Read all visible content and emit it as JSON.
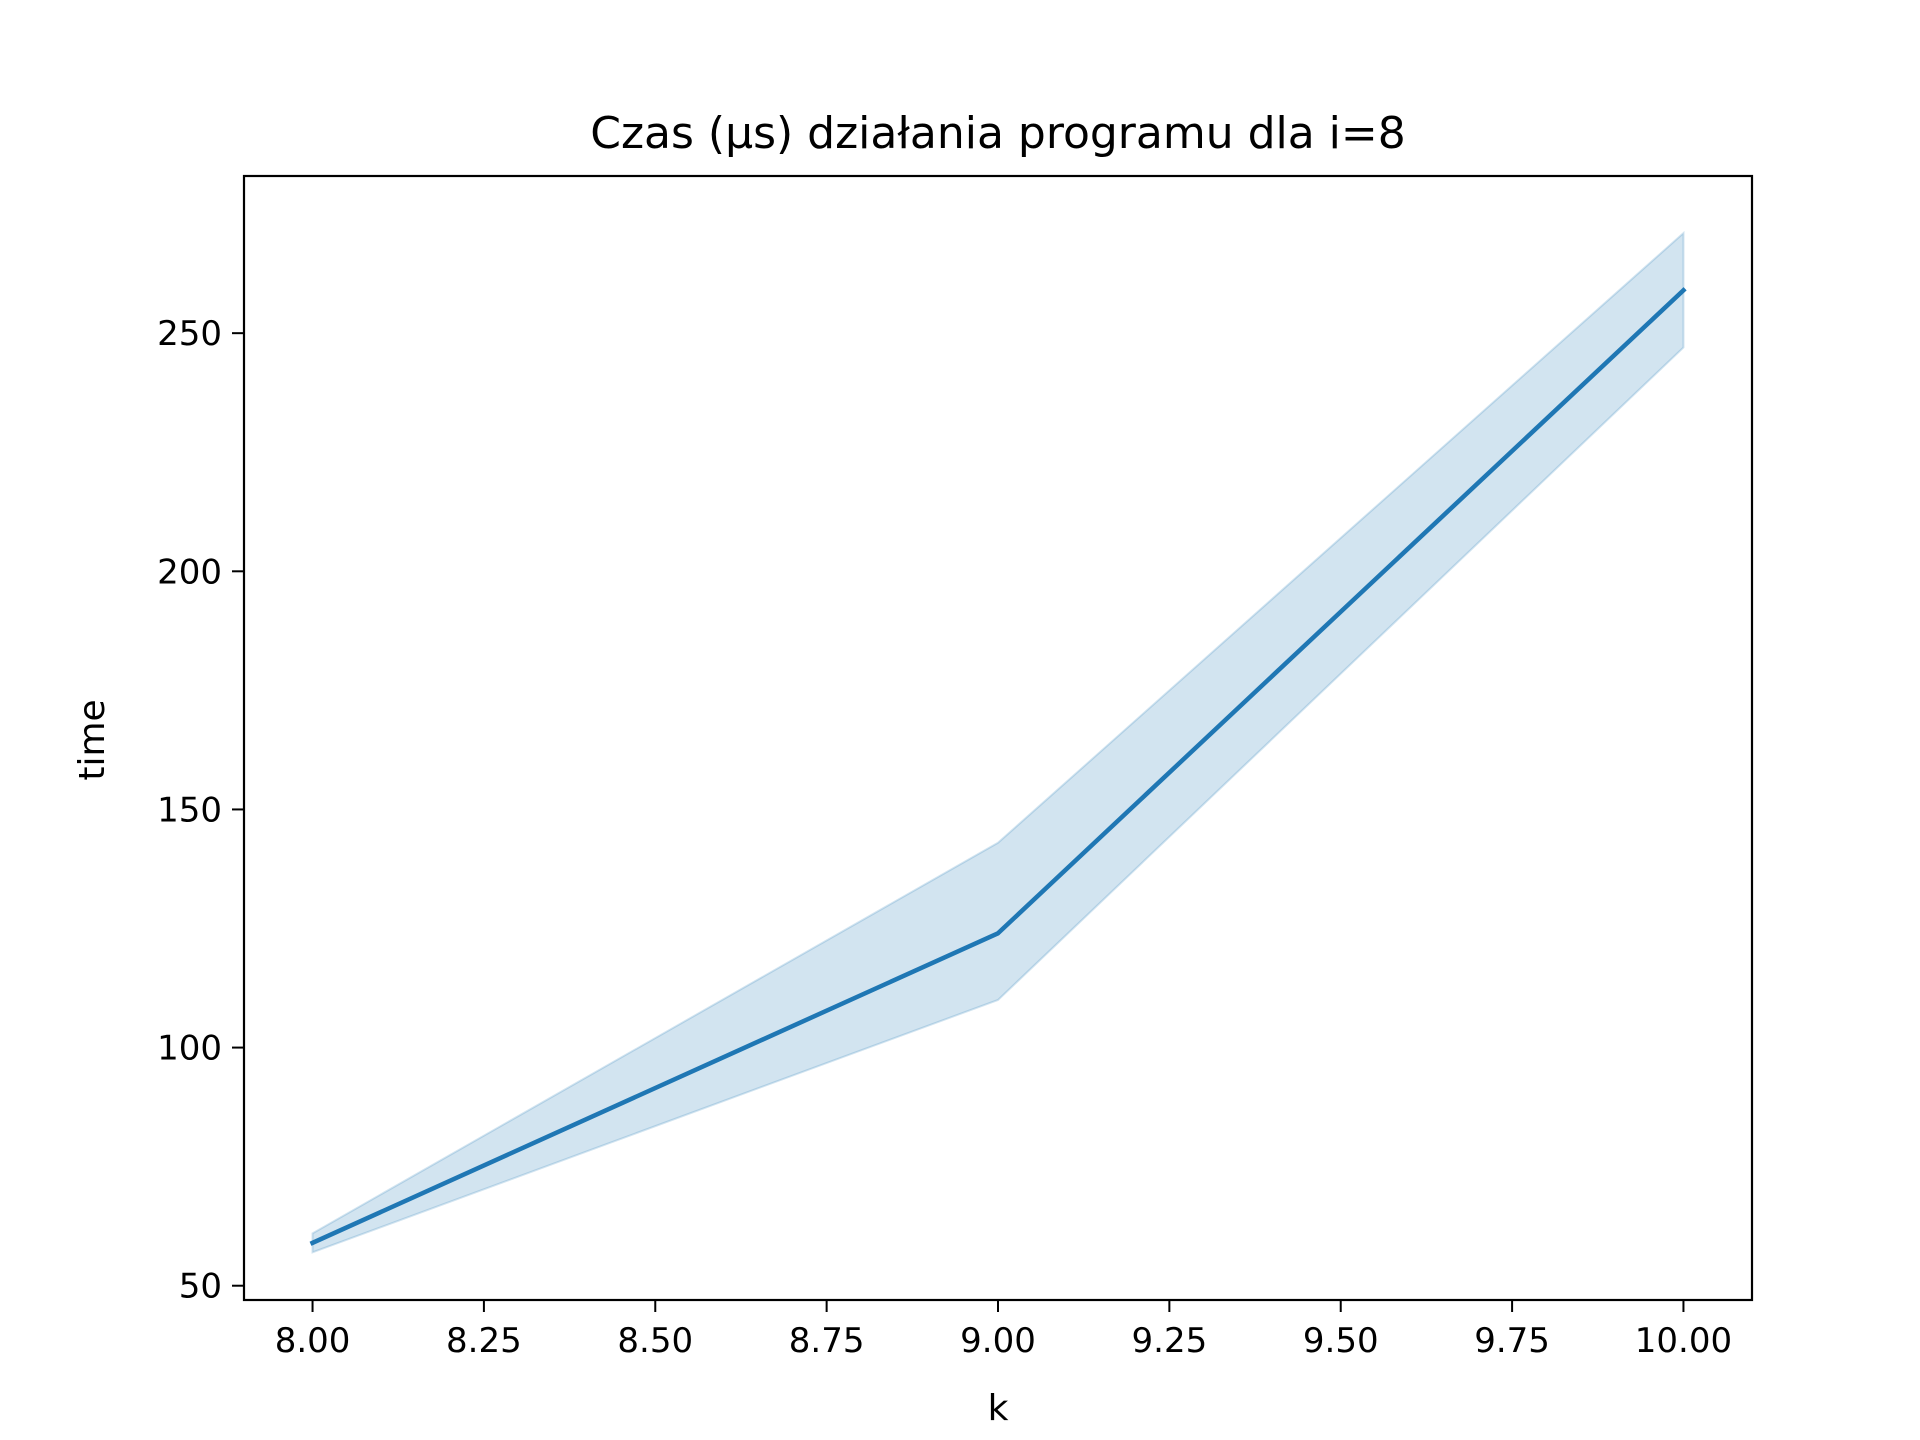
{
  "chart_data": {
    "type": "line",
    "title": "Czas (µs) działania programu dla i=8",
    "xlabel": "k",
    "ylabel": "time",
    "xlim": [
      7.9,
      10.1
    ],
    "ylim": [
      47,
      283
    ],
    "xticks": [
      "8.00",
      "8.25",
      "8.50",
      "8.75",
      "9.00",
      "9.25",
      "9.50",
      "9.75",
      "10.00"
    ],
    "xtick_values": [
      8.0,
      8.25,
      8.5,
      8.75,
      9.0,
      9.25,
      9.5,
      9.75,
      10.0
    ],
    "yticks": [
      "50",
      "100",
      "150",
      "200",
      "250"
    ],
    "ytick_values": [
      50,
      100,
      150,
      200,
      250
    ],
    "grid": false,
    "color": "#1f77b4",
    "band_color": "#1f77b4",
    "series": [
      {
        "x": [
          8,
          9,
          10
        ],
        "y": [
          59,
          124,
          259
        ],
        "y_lower": [
          57,
          110,
          247
        ],
        "y_upper": [
          61,
          143,
          271
        ]
      }
    ]
  }
}
